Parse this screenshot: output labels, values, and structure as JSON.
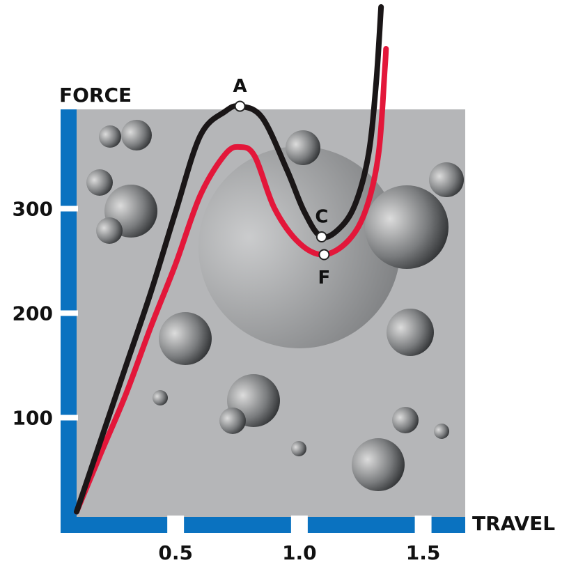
{
  "chart_data": {
    "type": "line",
    "x_label": "TRAVEL",
    "y_label": "FORCE",
    "xlim": [
      0.1,
      1.67
    ],
    "ylim": [
      5,
      395
    ],
    "xticks": [
      {
        "value": 0.5,
        "label": "0.5"
      },
      {
        "value": 1.0,
        "label": "1.0"
      },
      {
        "value": 1.5,
        "label": "1.5"
      }
    ],
    "yticks": [
      100,
      200,
      300
    ],
    "axis_color": "#0a72c0",
    "background": "#b5b6b8",
    "series": [
      {
        "color": "#1a1617",
        "x": [
          0.1,
          0.2,
          0.3,
          0.4,
          0.5,
          0.6,
          0.7,
          0.76,
          0.85,
          0.95,
          1.02,
          1.09,
          1.17,
          1.23,
          1.28,
          1.31,
          1.33
        ],
        "values": [
          10,
          80,
          150,
          220,
          297,
          370,
          393,
          398,
          387,
          337,
          297,
          273,
          283,
          307,
          353,
          420,
          493
        ]
      },
      {
        "color": "#e3173a",
        "x": [
          0.1,
          0.2,
          0.3,
          0.4,
          0.5,
          0.6,
          0.7,
          0.76,
          0.82,
          0.9,
          1.0,
          1.1,
          1.2,
          1.27,
          1.32,
          1.345,
          1.35
        ],
        "values": [
          10,
          67,
          123,
          187,
          247,
          313,
          352,
          359,
          350,
          300,
          267,
          256,
          270,
          300,
          353,
          433,
          453
        ]
      }
    ],
    "annotations": [
      {
        "label": "A",
        "x": 0.76,
        "y": 398
      },
      {
        "label": "C",
        "x": 1.09,
        "y": 273
      },
      {
        "label": "F",
        "x": 1.1,
        "y": 256
      }
    ]
  }
}
